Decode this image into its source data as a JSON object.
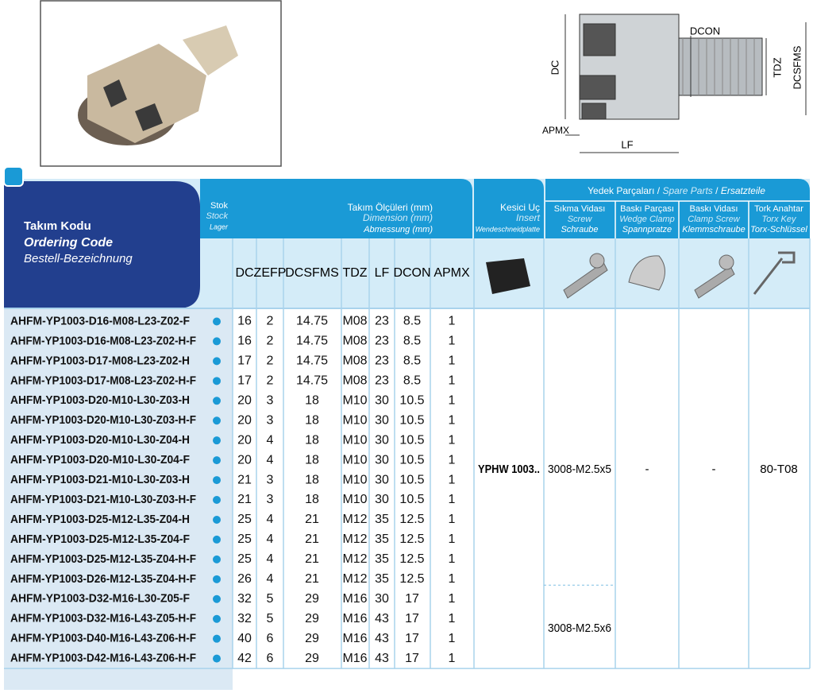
{
  "drawing": {
    "labels": [
      "DC",
      "DCON",
      "TDZ",
      "DCSFMS",
      "APMX",
      "LF"
    ]
  },
  "header": {
    "code": [
      "Takım Kodu",
      "Ordering Code",
      "Bestell-Bezeichnung"
    ],
    "stock": [
      "Stok",
      "Stock",
      "Lager"
    ],
    "dimensions": [
      "Takım Ölçüleri (mm)",
      "Dimension (mm)",
      "Abmessung (mm)"
    ],
    "insert": [
      "Kesici Uç",
      "Insert",
      "Wendeschneidplatte"
    ],
    "spare_parts": [
      "Yedek Parçaları",
      "/",
      "Spare Parts",
      "/",
      "Ersatzteile"
    ],
    "screw": [
      "Sıkma Vidası",
      "Screw",
      "Schraube"
    ],
    "wedge": [
      "Baskı Parçası",
      "Wedge Clamp",
      "Spannpratze"
    ],
    "clamp": [
      "Baskı Vidası",
      "Clamp Screw",
      "Klemmschraube"
    ],
    "key": [
      "Tork Anahtar",
      "Torx Key",
      "Torx-Schlüssel"
    ]
  },
  "columns": [
    "DC",
    "ZEFP",
    "DCSFMS",
    "TDZ",
    "LF",
    "DCON",
    "APMX"
  ],
  "rows": [
    [
      "AHFM-YP1003-D16-M08-L23-Z02-F",
      "16",
      "2",
      "14.75",
      "M08",
      "23",
      "8.5",
      "1"
    ],
    [
      "AHFM-YP1003-D16-M08-L23-Z02-H-F",
      "16",
      "2",
      "14.75",
      "M08",
      "23",
      "8.5",
      "1"
    ],
    [
      "AHFM-YP1003-D17-M08-L23-Z02-H",
      "17",
      "2",
      "14.75",
      "M08",
      "23",
      "8.5",
      "1"
    ],
    [
      "AHFM-YP1003-D17-M08-L23-Z02-H-F",
      "17",
      "2",
      "14.75",
      "M08",
      "23",
      "8.5",
      "1"
    ],
    [
      "AHFM-YP1003-D20-M10-L30-Z03-H",
      "20",
      "3",
      "18",
      "M10",
      "30",
      "10.5",
      "1"
    ],
    [
      "AHFM-YP1003-D20-M10-L30-Z03-H-F",
      "20",
      "3",
      "18",
      "M10",
      "30",
      "10.5",
      "1"
    ],
    [
      "AHFM-YP1003-D20-M10-L30-Z04-H",
      "20",
      "4",
      "18",
      "M10",
      "30",
      "10.5",
      "1"
    ],
    [
      "AHFM-YP1003-D20-M10-L30-Z04-F",
      "20",
      "4",
      "18",
      "M10",
      "30",
      "10.5",
      "1"
    ],
    [
      "AHFM-YP1003-D21-M10-L30-Z03-H",
      "21",
      "3",
      "18",
      "M10",
      "30",
      "10.5",
      "1"
    ],
    [
      "AHFM-YP1003-D21-M10-L30-Z03-H-F",
      "21",
      "3",
      "18",
      "M10",
      "30",
      "10.5",
      "1"
    ],
    [
      "AHFM-YP1003-D25-M12-L35-Z04-H",
      "25",
      "4",
      "21",
      "M12",
      "35",
      "12.5",
      "1"
    ],
    [
      "AHFM-YP1003-D25-M12-L35-Z04-F",
      "25",
      "4",
      "21",
      "M12",
      "35",
      "12.5",
      "1"
    ],
    [
      "AHFM-YP1003-D25-M12-L35-Z04-H-F",
      "25",
      "4",
      "21",
      "M12",
      "35",
      "12.5",
      "1"
    ],
    [
      "AHFM-YP1003-D26-M12-L35-Z04-H-F",
      "26",
      "4",
      "21",
      "M12",
      "35",
      "12.5",
      "1"
    ],
    [
      "AHFM-YP1003-D32-M16-L30-Z05-F",
      "32",
      "5",
      "29",
      "M16",
      "30",
      "17",
      "1"
    ],
    [
      "AHFM-YP1003-D32-M16-L43-Z05-H-F",
      "32",
      "5",
      "29",
      "M16",
      "43",
      "17",
      "1"
    ],
    [
      "AHFM-YP1003-D40-M16-L43-Z06-H-F",
      "40",
      "6",
      "29",
      "M16",
      "43",
      "17",
      "1"
    ],
    [
      "AHFM-YP1003-D42-M16-L43-Z06-H-F",
      "42",
      "6",
      "29",
      "M16",
      "43",
      "17",
      "1"
    ]
  ],
  "merged": {
    "insert": "YPHW 1003..",
    "screw": [
      "3008-M2.5x5",
      "3008-M2.5x6"
    ],
    "wedge": "-",
    "clamp": "-",
    "key": "80-T08"
  }
}
